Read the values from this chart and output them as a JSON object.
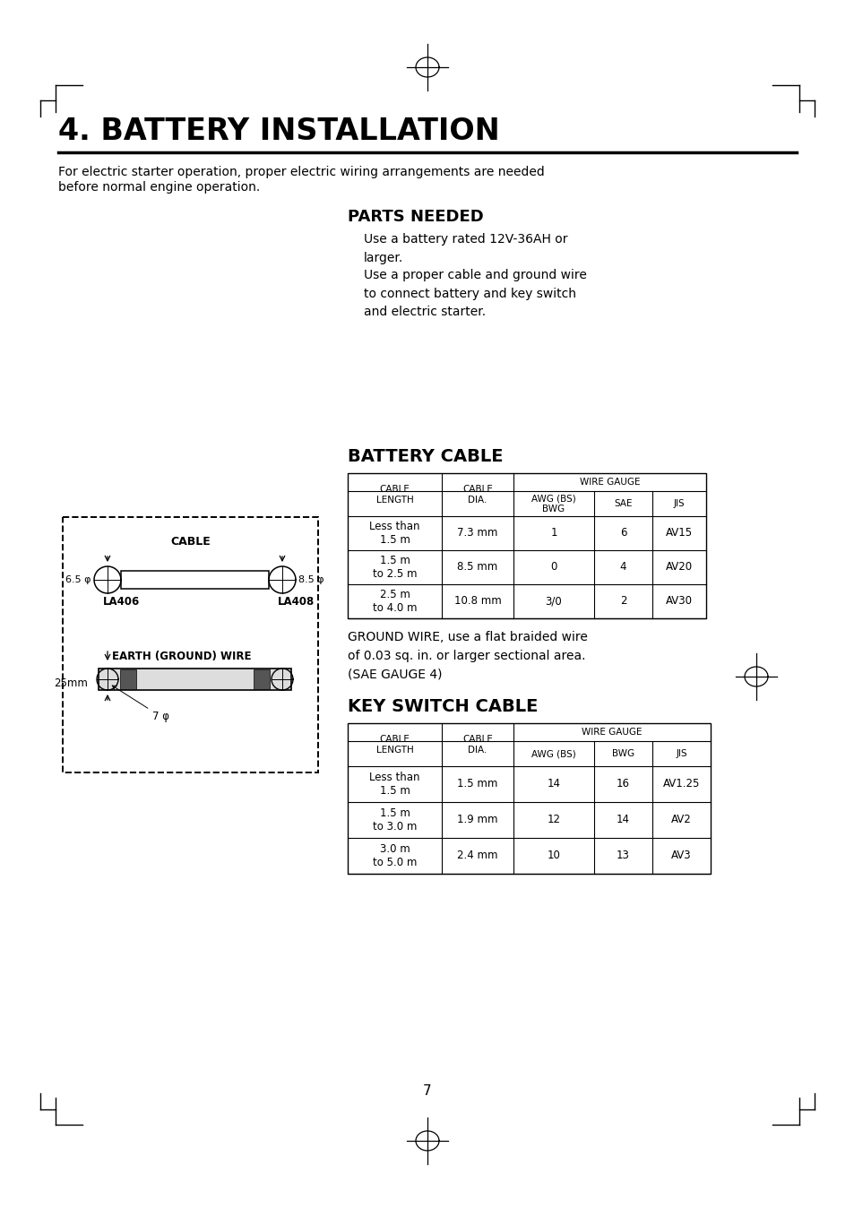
{
  "page_title": "4. BATTERY INSTALLATION",
  "page_number": "7",
  "intro_text_line1": "For electric starter operation, proper electric wiring arrangements are needed",
  "intro_text_line2": "before normal engine operation.",
  "parts_needed_title": "PARTS NEEDED",
  "parts_needed_text1": "Use a battery rated 12V-36AH or\nlarger.",
  "parts_needed_text2": "Use a proper cable and ground wire\nto connect battery and key switch\nand electric starter.",
  "battery_cable_title": "BATTERY CABLE",
  "battery_cable_wire_gauge": "WIRE GAUGE",
  "battery_cable_col_headers": [
    "CABLE\nLENGTH",
    "CABLE\nDIA.",
    "AWG (BS)\nBWG",
    "SAE",
    "JIS"
  ],
  "battery_cable_rows": [
    [
      "Less than\n1.5 m",
      "7.3 mm",
      "1",
      "6",
      "AV15"
    ],
    [
      "1.5 m\nto 2.5 m",
      "8.5 mm",
      "0",
      "4",
      "AV20"
    ],
    [
      "2.5 m\nto 4.0 m",
      "10.8 mm",
      "3/0",
      "2",
      "AV30"
    ]
  ],
  "ground_wire_text": "GROUND WIRE, use a flat braided wire\nof 0.03 sq. in. or larger sectional area.\n(SAE GAUGE 4)",
  "key_switch_title": "KEY SWITCH CABLE",
  "key_switch_wire_gauge": "WIRE GAUGE",
  "key_switch_col_headers": [
    "CABLE\nLENGTH",
    "CABLE\nDIA.",
    "AWG (BS)",
    "BWG",
    "JIS"
  ],
  "key_switch_rows": [
    [
      "Less than\n1.5 m",
      "1.5 mm",
      "14",
      "16",
      "AV1.25"
    ],
    [
      "1.5 m\nto 3.0 m",
      "1.9 mm",
      "12",
      "14",
      "AV2"
    ],
    [
      "3.0 m\nto 5.0 m",
      "2.4 mm",
      "10",
      "13",
      "AV3"
    ]
  ],
  "bg_color": "#ffffff",
  "text_color": "#000000"
}
